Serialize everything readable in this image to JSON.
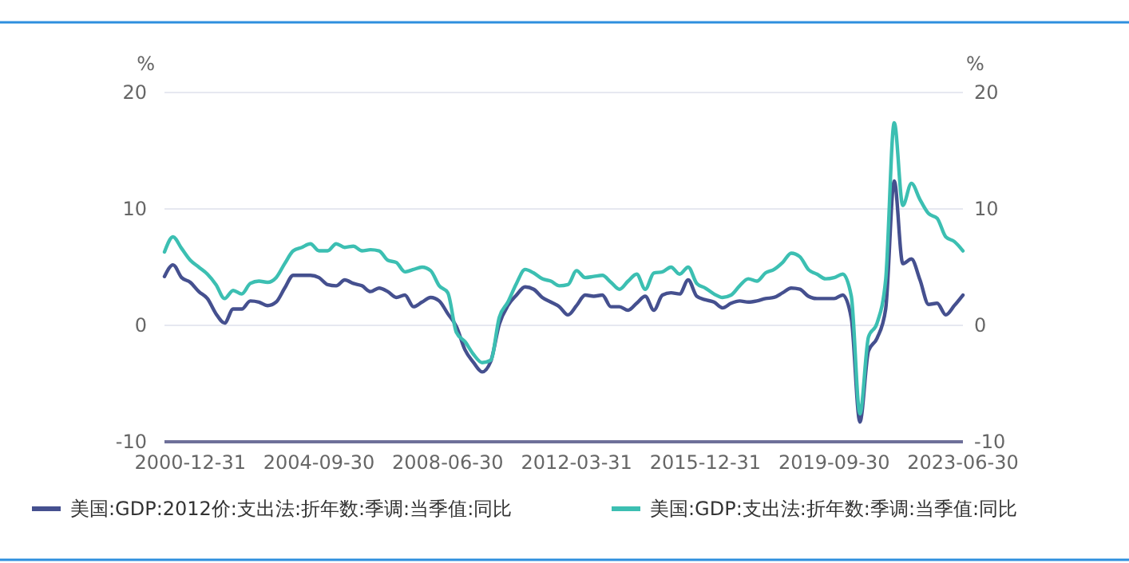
{
  "chart_data": {
    "type": "line",
    "ylabel": "%",
    "y2label": "%",
    "categories": [
      null,
      null,
      null,
      "2000-12-31",
      null,
      null,
      null,
      null,
      null,
      null,
      null,
      null,
      null,
      null,
      null,
      null,
      null,
      null,
      "2004-09-30",
      null,
      null,
      null,
      null,
      null,
      null,
      null,
      null,
      null,
      null,
      null,
      null,
      null,
      null,
      "2008-06-30",
      null,
      null,
      null,
      null,
      null,
      null,
      null,
      null,
      null,
      null,
      null,
      null,
      null,
      null,
      "2012-03-31",
      null,
      null,
      null,
      null,
      null,
      null,
      null,
      null,
      null,
      null,
      null,
      null,
      null,
      null,
      "2015-12-31",
      null,
      null,
      null,
      null,
      null,
      null,
      null,
      null,
      null,
      null,
      null,
      null,
      null,
      null,
      "2019-09-30",
      null,
      null,
      null,
      null,
      null,
      null,
      null,
      null,
      null,
      null,
      null,
      null,
      null,
      null,
      "2023-06-30"
    ],
    "series": [
      {
        "name": "美国:GDP:2012价:支出法:折年数:季调:当季值:同比",
        "color": "#45508f",
        "values": [
          4.2,
          5.2,
          4.1,
          3.7,
          2.9,
          2.3,
          1.0,
          0.2,
          1.4,
          1.4,
          2.1,
          2.0,
          1.7,
          2.0,
          3.2,
          4.3,
          4.3,
          4.3,
          4.1,
          3.5,
          3.4,
          3.9,
          3.6,
          3.4,
          2.9,
          3.2,
          2.9,
          2.4,
          2.6,
          1.6,
          2.0,
          2.4,
          2.1,
          1.0,
          -0.1,
          -2.1,
          -3.2,
          -4.0,
          -3.1,
          0.1,
          1.7,
          2.6,
          3.3,
          3.1,
          2.4,
          2.0,
          1.6,
          0.9,
          1.7,
          2.6,
          2.5,
          2.6,
          1.6,
          1.6,
          1.3,
          1.9,
          2.5,
          1.3,
          2.6,
          2.8,
          2.7,
          3.9,
          2.5,
          2.2,
          2.0,
          1.5,
          1.9,
          2.1,
          2.0,
          2.1,
          2.3,
          2.4,
          2.8,
          3.2,
          3.1,
          2.5,
          2.3,
          2.3,
          2.3,
          2.6,
          0.6,
          -8.3,
          -2.2,
          -1.1,
          1.4,
          12.4,
          5.3,
          5.7,
          3.9,
          1.8,
          1.9,
          0.9,
          1.7,
          2.6
        ]
      },
      {
        "name": "美国:GDP:支出法:折年数:季调:当季值:同比",
        "color": "#3cbfb2",
        "values": [
          6.3,
          7.6,
          6.6,
          5.6,
          5.0,
          4.4,
          3.5,
          2.3,
          3.0,
          2.7,
          3.6,
          3.8,
          3.7,
          4.1,
          5.3,
          6.4,
          6.7,
          7.0,
          6.4,
          6.4,
          7.0,
          6.7,
          6.8,
          6.4,
          6.5,
          6.4,
          5.6,
          5.4,
          4.6,
          4.8,
          5.0,
          4.7,
          3.4,
          2.8,
          -0.6,
          -1.4,
          -2.5,
          -3.2,
          -3.0,
          0.7,
          2.0,
          3.6,
          4.8,
          4.5,
          4.0,
          3.8,
          3.4,
          3.5,
          4.7,
          4.1,
          4.2,
          4.3,
          3.7,
          3.1,
          3.8,
          4.4,
          3.1,
          4.5,
          4.6,
          5.0,
          4.4,
          5.0,
          3.6,
          3.2,
          2.7,
          2.4,
          2.6,
          3.4,
          4.0,
          3.8,
          4.5,
          4.8,
          5.4,
          6.2,
          5.9,
          4.8,
          4.4,
          4.0,
          4.1,
          4.4,
          2.5,
          -7.6,
          -1.0,
          0.2,
          3.9,
          17.4,
          10.3,
          12.2,
          10.8,
          9.6,
          9.2,
          7.6,
          7.2,
          6.4
        ]
      }
    ],
    "ylim": [
      -10,
      20
    ],
    "yticks": [
      -10,
      0,
      10,
      20
    ],
    "y2lim": [
      -10,
      20
    ],
    "y2ticks": [
      -10,
      0,
      10,
      20
    ],
    "grid": "y",
    "legend": "bottom",
    "marker": "none",
    "line_style": "solid"
  }
}
